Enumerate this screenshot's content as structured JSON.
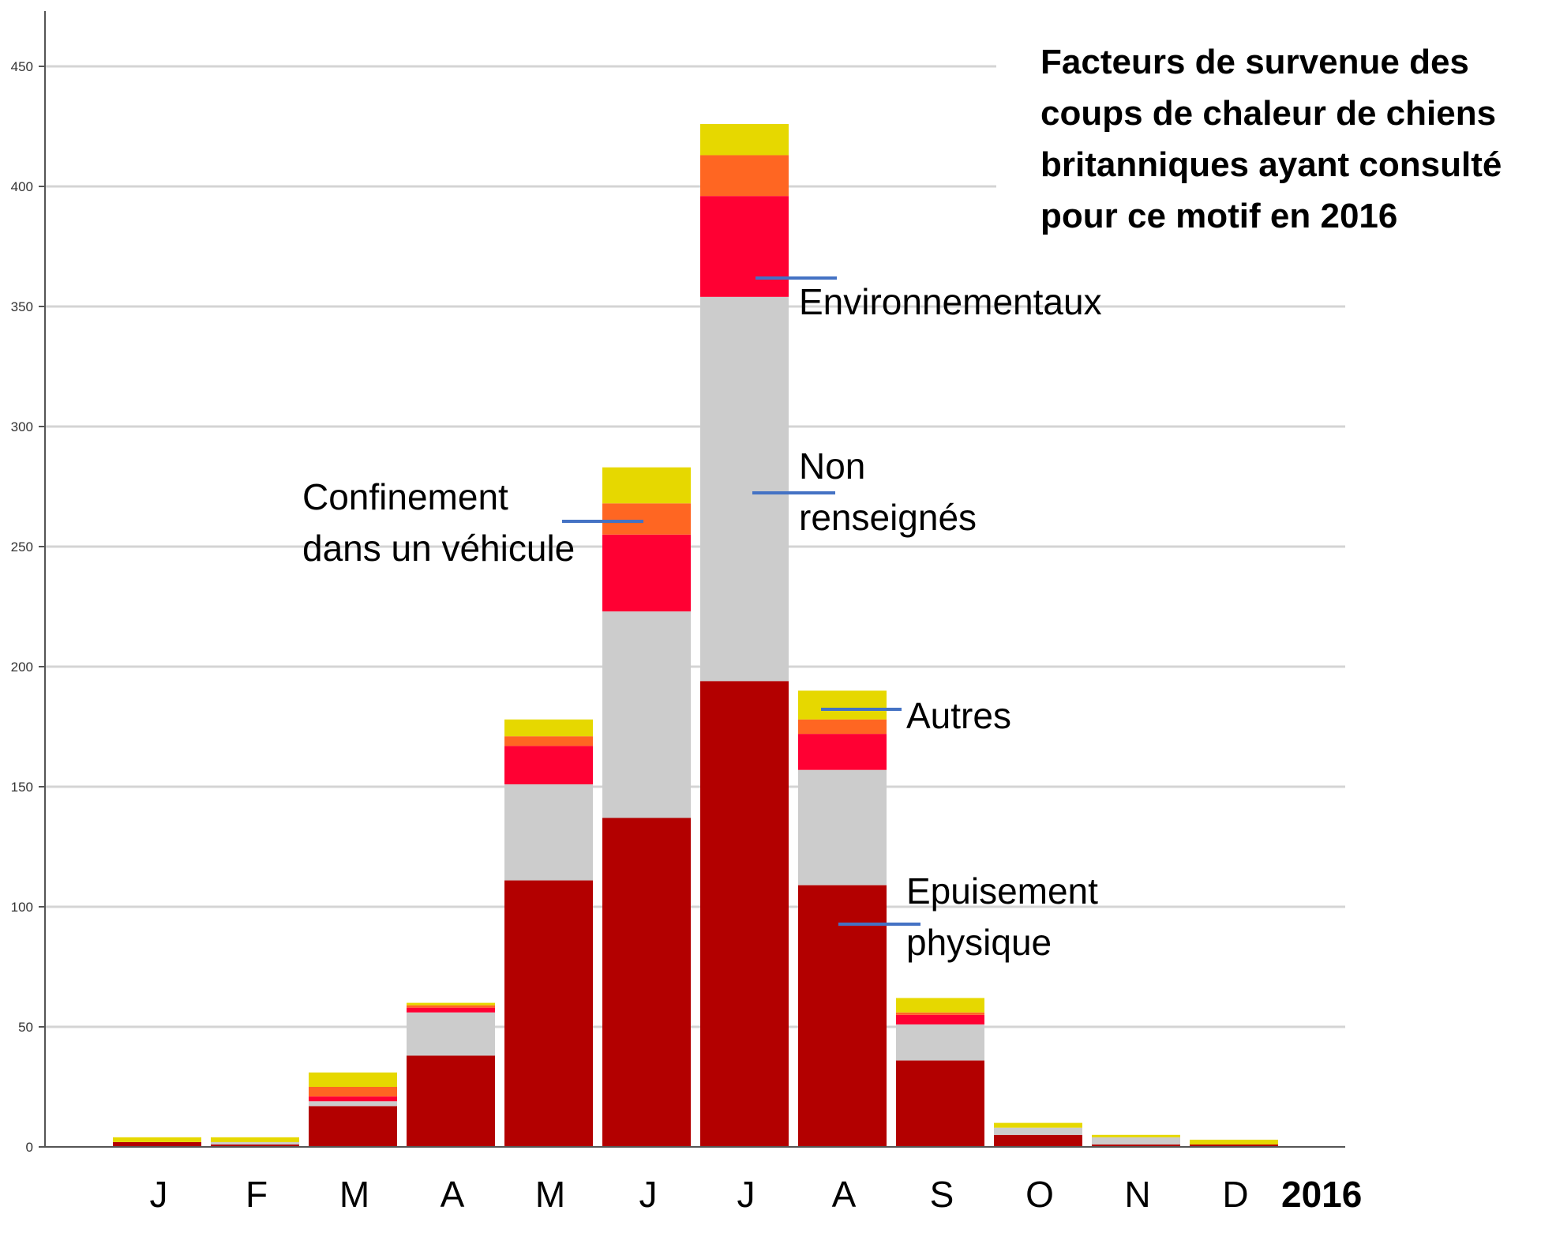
{
  "chart_data": {
    "type": "bar",
    "stacked": true,
    "title_lines": [
      "Facteurs de survenue des",
      "coups de chaleur de chiens",
      "britanniques ayant consulté",
      "pour ce motif en 2016"
    ],
    "year_label": "2016",
    "categories": [
      "J",
      "F",
      "M",
      "A",
      "M",
      "J",
      "J",
      "A",
      "S",
      "O",
      "N",
      "D"
    ],
    "ylim": [
      0,
      450
    ],
    "yticks": [
      0,
      50,
      100,
      150,
      200,
      250,
      300,
      350,
      400,
      450
    ],
    "grid": true,
    "series": [
      {
        "name": "Epuisement physique",
        "color": "#b30000",
        "values": [
          2,
          1,
          17,
          38,
          111,
          137,
          194,
          109,
          36,
          5,
          1,
          1
        ]
      },
      {
        "name": "Non renseignés",
        "color": "#cccccc",
        "values": [
          0,
          1,
          2,
          18,
          40,
          86,
          160,
          48,
          15,
          3,
          3,
          0
        ]
      },
      {
        "name": "Confinement dans un véhicule",
        "color": "#ff0033",
        "values": [
          0,
          0,
          2,
          2,
          16,
          32,
          42,
          15,
          4,
          0,
          0,
          0
        ]
      },
      {
        "name": "Environnementaux",
        "color": "#ff6622",
        "values": [
          0,
          0,
          4,
          1,
          4,
          13,
          17,
          6,
          1,
          0,
          0,
          0
        ]
      },
      {
        "name": "Autres",
        "color": "#e6d800",
        "values": [
          2,
          2,
          6,
          1,
          7,
          15,
          13,
          12,
          6,
          2,
          1,
          2
        ]
      }
    ],
    "annotations": [
      {
        "lines": [
          "Environnementaux"
        ]
      },
      {
        "lines": [
          "Non",
          "renseignés"
        ]
      },
      {
        "lines": [
          "Confinement",
          "dans un véhicule"
        ]
      },
      {
        "lines": [
          "Autres"
        ]
      },
      {
        "lines": [
          "Epuisement",
          "physique"
        ]
      }
    ],
    "leader_color": "#4472c4"
  }
}
